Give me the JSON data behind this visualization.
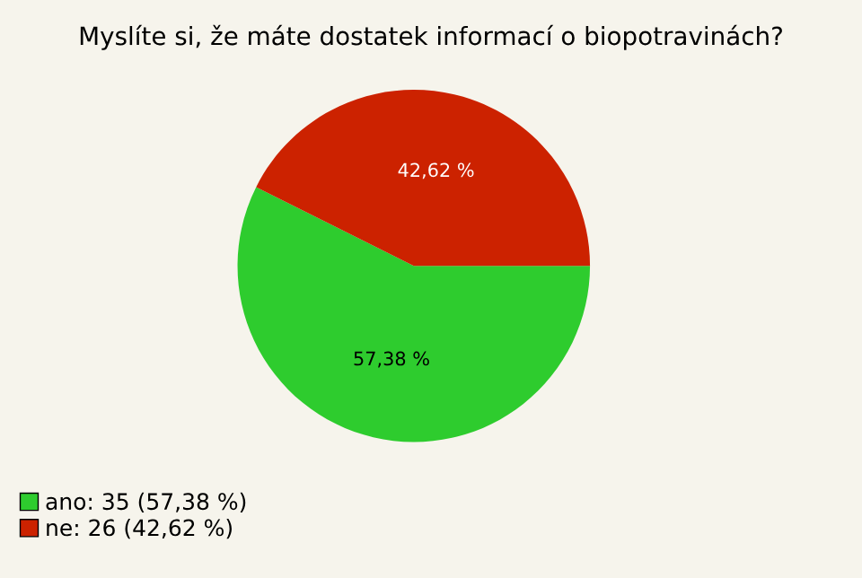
{
  "chart_data": {
    "type": "pie",
    "title": "Myslíte si, že máte dostatek informací o biopotravinách?",
    "categories": [
      "ano: 35 (57,38 %)",
      "ne: 26 (42,62 %)"
    ],
    "values": [
      57.38,
      42.62
    ],
    "value_labels": [
      "57,38 %",
      "42,62 %"
    ],
    "colors": [
      "#2ecc2e",
      "#cc2200"
    ],
    "legend": "bottom left"
  }
}
